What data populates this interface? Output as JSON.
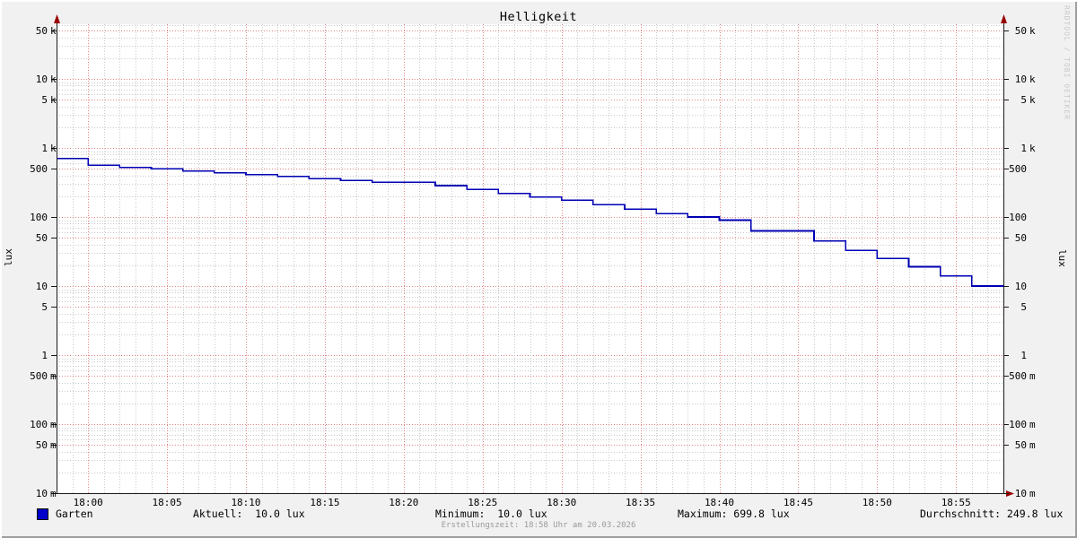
{
  "title": "Helligkeit",
  "y_axis": {
    "left_unit": "lux",
    "right_unit": "lux"
  },
  "watermark": "RRDTOOL / TOBI OETIKER",
  "legend": {
    "series_label": "Garten",
    "series_color": "#0000cc"
  },
  "stats": {
    "aktuell": "Aktuell:  10.0 lux",
    "minimum": "Minimum:  10.0 lux",
    "maximum": "Maximum: 699.8 lux",
    "durchschnitt": "Durchschnitt: 249.8 lux"
  },
  "footer": "Erstellungszeit: 18:58 Uhr am 20.03.2026",
  "colors": {
    "background": "#f1f1f1",
    "canvas": "#ffffff",
    "grid_minor": "#c4c4c4",
    "grid_major": "#dd6666",
    "axis": "#1a1a1a",
    "arrow": "#990000",
    "line": "#0000b4",
    "swatch": "#0000cc",
    "watermark_text": "#c9c9c9",
    "footer_text": "#9a9a9a"
  },
  "chart_data": {
    "type": "line",
    "line_style": "step",
    "title": "Helligkeit",
    "xlabel": "",
    "ylabel": "lux",
    "y_scale": "log",
    "ylim": [
      0.01,
      62000
    ],
    "grid": true,
    "x_range": [
      "17:58",
      "18:58"
    ],
    "x_minor_minutes": 1,
    "x_major_minutes": 5,
    "x_ticks": [
      "18:00",
      "18:05",
      "18:10",
      "18:15",
      "18:20",
      "18:25",
      "18:30",
      "18:35",
      "18:40",
      "18:45",
      "18:50",
      "18:55"
    ],
    "y_ticks": [
      {
        "n": "50",
        "u": "k",
        "v": 50000
      },
      {
        "n": "10",
        "u": "k",
        "v": 10000
      },
      {
        "n": "5",
        "u": "k",
        "v": 5000
      },
      {
        "n": "1",
        "u": "k",
        "v": 1000
      },
      {
        "n": "500",
        "u": "",
        "v": 500
      },
      {
        "n": "100",
        "u": "",
        "v": 100
      },
      {
        "n": "50",
        "u": "",
        "v": 50
      },
      {
        "n": "10",
        "u": "",
        "v": 10
      },
      {
        "n": "5",
        "u": "",
        "v": 5
      },
      {
        "n": "1",
        "u": "",
        "v": 1
      },
      {
        "n": "500",
        "u": "m",
        "v": 0.5
      },
      {
        "n": "100",
        "u": "m",
        "v": 0.1
      },
      {
        "n": "50",
        "u": "m",
        "v": 0.05
      },
      {
        "n": "10",
        "u": "m",
        "v": 0.01
      }
    ],
    "series": [
      {
        "name": "Garten",
        "color": "#0000b4",
        "points": [
          {
            "t": "17:58",
            "lux": 699.8
          },
          {
            "t": "18:00",
            "lux": 560
          },
          {
            "t": "18:02",
            "lux": 525
          },
          {
            "t": "18:04",
            "lux": 500
          },
          {
            "t": "18:06",
            "lux": 465
          },
          {
            "t": "18:08",
            "lux": 435
          },
          {
            "t": "18:10",
            "lux": 410
          },
          {
            "t": "18:12",
            "lux": 385
          },
          {
            "t": "18:14",
            "lux": 360
          },
          {
            "t": "18:16",
            "lux": 340
          },
          {
            "t": "18:18",
            "lux": 320
          },
          {
            "t": "18:20",
            "lux": 320
          },
          {
            "t": "18:22",
            "lux": 285
          },
          {
            "t": "18:24",
            "lux": 250
          },
          {
            "t": "18:26",
            "lux": 220
          },
          {
            "t": "18:28",
            "lux": 195
          },
          {
            "t": "18:30",
            "lux": 175
          },
          {
            "t": "18:32",
            "lux": 150
          },
          {
            "t": "18:34",
            "lux": 130
          },
          {
            "t": "18:36",
            "lux": 112
          },
          {
            "t": "18:38",
            "lux": 100
          },
          {
            "t": "18:40",
            "lux": 90
          },
          {
            "t": "18:42",
            "lux": 63
          },
          {
            "t": "18:44",
            "lux": 63
          },
          {
            "t": "18:46",
            "lux": 45
          },
          {
            "t": "18:48",
            "lux": 33
          },
          {
            "t": "18:50",
            "lux": 25
          },
          {
            "t": "18:52",
            "lux": 19
          },
          {
            "t": "18:54",
            "lux": 14
          },
          {
            "t": "18:56",
            "lux": 10
          }
        ],
        "stats": {
          "aktuell": 10.0,
          "minimum": 10.0,
          "maximum": 699.8,
          "durchschnitt": 249.8
        }
      }
    ],
    "legend_position": "bottom"
  }
}
